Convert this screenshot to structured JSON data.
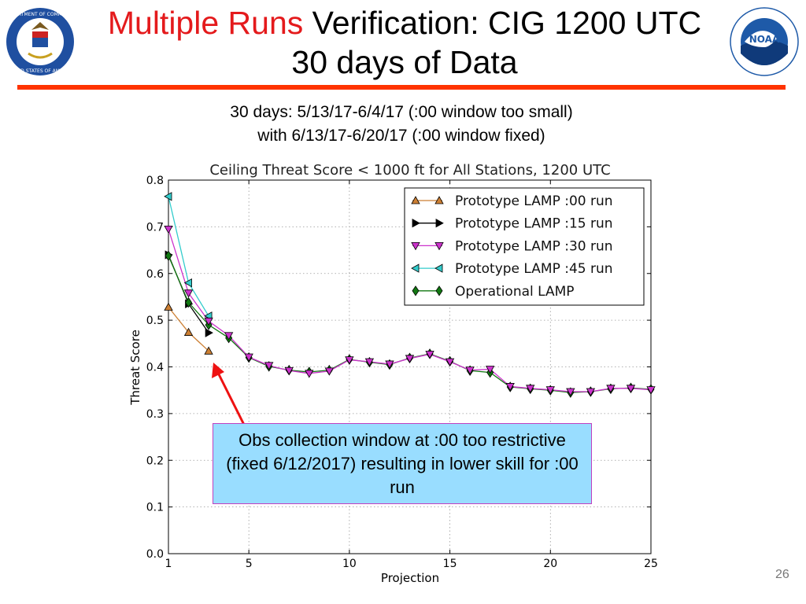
{
  "header": {
    "title_highlight": "Multiple Runs",
    "title_rest": " Verification: CIG 1200 UTC",
    "title_line2": "30 days of Data",
    "logo_left_text": "DEPARTMENT OF COMMERCE · UNITED STATES OF AMERICA",
    "logo_right_text": "NOAA"
  },
  "subtitle": {
    "line1": "30 days: 5/13/17-6/4/17 (:00 window too small)",
    "line2": "with 6/13/17-6/20/17 (:00 window fixed)"
  },
  "callout": {
    "text": "Obs collection window at :00 too restrictive (fixed 6/12/2017) resulting in lower skill for :00 run",
    "background": "#99ddff",
    "border": "#c040c0",
    "arrow_color": "#ee1111"
  },
  "page_number": "26",
  "chart_data": {
    "type": "line",
    "title": "Ceiling Threat Score < 1000 ft for All Stations, 1200 UTC",
    "xlabel": "Projection",
    "ylabel": "Threat Score",
    "xlim": [
      1,
      25
    ],
    "ylim": [
      0.0,
      0.8
    ],
    "xticks": [
      1,
      5,
      10,
      15,
      20,
      25
    ],
    "yticks": [
      0.0,
      0.1,
      0.2,
      0.3,
      0.4,
      0.5,
      0.6,
      0.7,
      0.8
    ],
    "ytick_labels": [
      "0.0",
      "0.1",
      "0.2",
      "0.3",
      "0.4",
      "0.5",
      "0.6",
      "0.7",
      "0.8"
    ],
    "grid": true,
    "legend_position": "top-right",
    "series": [
      {
        "name": "Prototype LAMP :00 run",
        "color": "#cc7f33",
        "marker": "triangle-up",
        "x": [
          1,
          2,
          3
        ],
        "y": [
          0.528,
          0.474,
          0.434
        ]
      },
      {
        "name": "Prototype LAMP :15 run",
        "color": "#000000",
        "marker": "triangle-right",
        "x": [
          1,
          2,
          3
        ],
        "y": [
          0.64,
          0.535,
          0.473
        ]
      },
      {
        "name": "Prototype LAMP :30 run",
        "color": "#cc33cc",
        "marker": "triangle-down",
        "x": [
          1,
          2,
          3,
          4,
          5,
          6,
          7,
          8,
          9,
          10,
          11,
          12,
          13,
          14,
          15,
          16,
          17,
          18,
          19,
          20,
          21,
          22,
          23,
          24,
          25
        ],
        "y": [
          0.695,
          0.558,
          0.498,
          0.467,
          0.421,
          0.403,
          0.392,
          0.386,
          0.391,
          0.415,
          0.411,
          0.406,
          0.418,
          0.427,
          0.411,
          0.393,
          0.395,
          0.358,
          0.354,
          0.351,
          0.347,
          0.347,
          0.354,
          0.354,
          0.351
        ]
      },
      {
        "name": "Prototype LAMP :45 run",
        "color": "#33cccc",
        "marker": "triangle-left",
        "x": [
          1,
          2,
          3
        ],
        "y": [
          0.765,
          0.58,
          0.509
        ]
      },
      {
        "name": "Operational LAMP",
        "color": "#117711",
        "marker": "diamond",
        "x": [
          1,
          2,
          3,
          4,
          5,
          6,
          7,
          8,
          9,
          10,
          11,
          12,
          13,
          14,
          15,
          16,
          17,
          18,
          19,
          20,
          21,
          22,
          23,
          24,
          25
        ],
        "y": [
          0.638,
          0.538,
          0.49,
          0.462,
          0.42,
          0.401,
          0.393,
          0.389,
          0.393,
          0.416,
          0.41,
          0.405,
          0.419,
          0.428,
          0.412,
          0.392,
          0.388,
          0.357,
          0.353,
          0.35,
          0.345,
          0.347,
          0.353,
          0.355,
          0.352
        ]
      }
    ]
  }
}
